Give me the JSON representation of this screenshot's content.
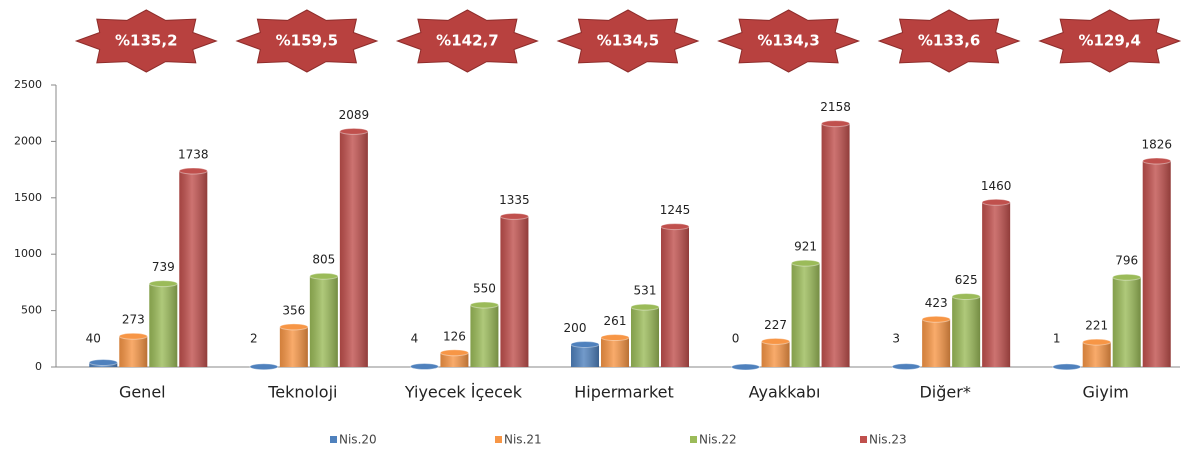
{
  "chart_data": {
    "type": "bar",
    "annotations": [
      "%135,2",
      "%159,5",
      "%142,7",
      "%134,5",
      "%134,3",
      "%133,6",
      "%129,4"
    ],
    "categories": [
      "Genel",
      "Teknoloji",
      "Yiyecek İçecek",
      "Hipermarket",
      "Ayakkabı",
      "Diğer*",
      "Giyim"
    ],
    "series": [
      {
        "name": "Nis.20",
        "color": "#4f81bd",
        "values": [
          40,
          2,
          4,
          200,
          0,
          3,
          1
        ]
      },
      {
        "name": "Nis.21",
        "color": "#f79646",
        "values": [
          273,
          356,
          126,
          261,
          227,
          423,
          221
        ]
      },
      {
        "name": "Nis.22",
        "color": "#9bbb59",
        "values": [
          739,
          805,
          550,
          531,
          921,
          625,
          796
        ]
      },
      {
        "name": "Nis.23",
        "color": "#c0504d",
        "values": [
          1738,
          2089,
          1335,
          1245,
          2158,
          1460,
          1826
        ]
      }
    ],
    "ylim": [
      0,
      2500
    ],
    "yticks": [
      0,
      500,
      1000,
      1500,
      2000,
      2500
    ],
    "grid": false,
    "legend": "bottom"
  }
}
